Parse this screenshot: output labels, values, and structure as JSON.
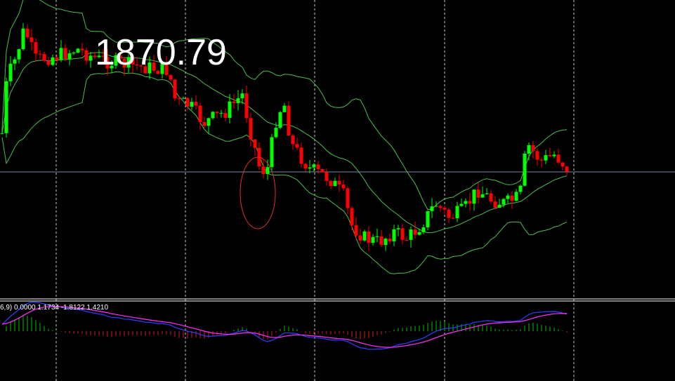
{
  "price_label": "1870.79",
  "indicator_label": "6,9) 0.0000 1.1734 -1.8122 1.4210"
}
